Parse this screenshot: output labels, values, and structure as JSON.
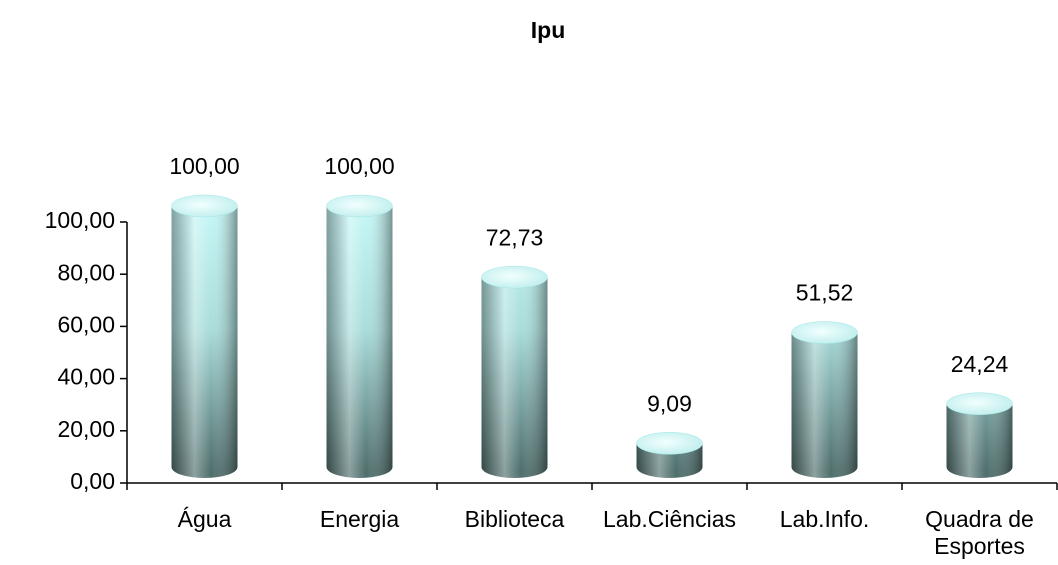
{
  "chart_data": {
    "type": "bar3d",
    "title": "Ipu",
    "categories": [
      "Água",
      "Energia",
      "Biblioteca",
      "Lab.Ciências",
      "Lab.Info.",
      "Quadra de Esportes"
    ],
    "values": [
      100,
      100,
      72.73,
      9.09,
      51.52,
      24.24
    ],
    "value_labels": [
      "100,00",
      "100,00",
      "72,73",
      "9,09",
      "51,52",
      "24,24"
    ],
    "color": "#9fe8e6",
    "ylim": [
      0,
      100
    ],
    "yticks": [
      {
        "value": 0,
        "label": "0,00"
      },
      {
        "value": 20,
        "label": "20,00"
      },
      {
        "value": 40,
        "label": "40,00"
      },
      {
        "value": 60,
        "label": "60,00"
      },
      {
        "value": 80,
        "label": "80,00"
      },
      {
        "value": 100,
        "label": "100,00"
      }
    ],
    "grid": false
  }
}
